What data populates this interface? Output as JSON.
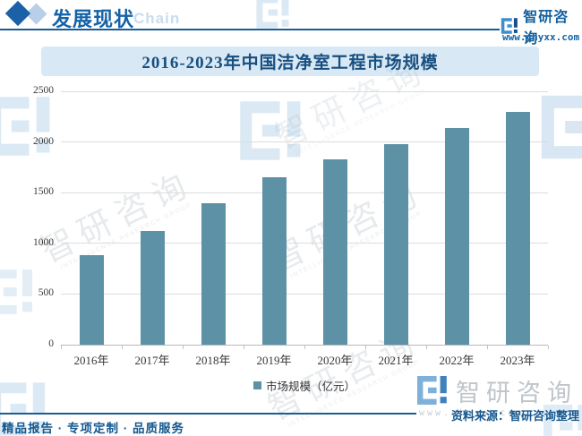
{
  "header": {
    "section_title": "发展现状",
    "section_subtitle": "Chain",
    "brand_name": "智研咨询",
    "brand_url": "www.chyxx.com"
  },
  "chart_data": {
    "type": "bar",
    "title": "2016-2023年中国洁净室工程市场规模",
    "categories": [
      "2016年",
      "2017年",
      "2018年",
      "2019年",
      "2020年",
      "2021年",
      "2022年",
      "2023年"
    ],
    "series": [
      {
        "name": "市场规模（亿元）",
        "values": [
          880,
          1120,
          1400,
          1650,
          1830,
          1980,
          2140,
          2300
        ]
      }
    ],
    "xlabel": "",
    "ylabel": "",
    "ylim": [
      0,
      2500
    ],
    "yticks": [
      0,
      500,
      1000,
      1500,
      2000,
      2500
    ],
    "grid": true,
    "legend_position": "bottom",
    "bar_color": "#5d92a6"
  },
  "legend": {
    "label": "市场规模（亿元）"
  },
  "footer": {
    "services": "精品报告 · 专项定制 · 品质服务",
    "source": "资料来源：智研咨询整理"
  },
  "watermark": {
    "cn": "智研咨询",
    "en": "INTELLIGENCE RESEARCH GROUP",
    "url": "www.chyxx.com"
  },
  "colors": {
    "accent_dark_blue": "#1563a8",
    "accent_light_blue": "#c9dcee",
    "band_bg": "#d8e8f5",
    "bar": "#5d92a6",
    "rule": "#1a5d94"
  }
}
